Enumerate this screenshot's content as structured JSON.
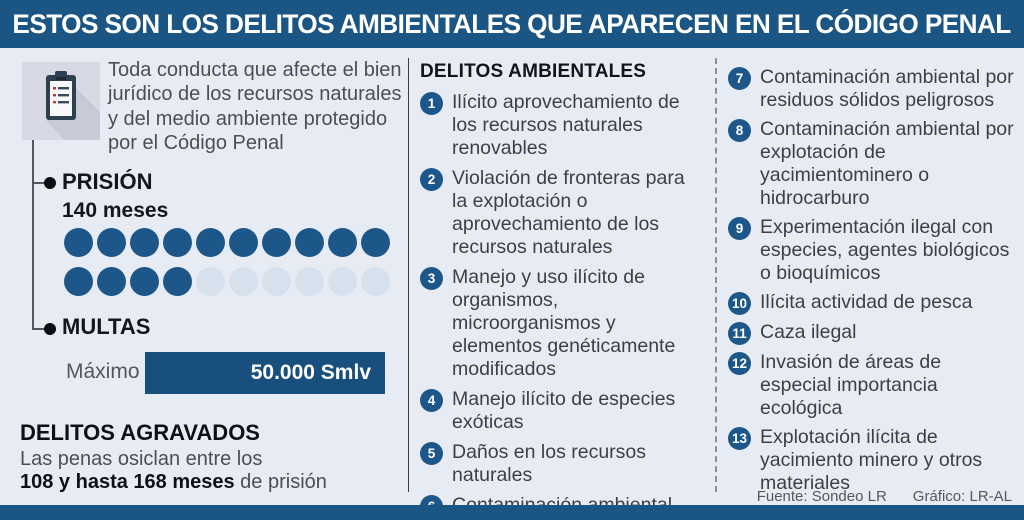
{
  "title": "ESTOS SON LOS DELITOS AMBIENTALES QUE APARECEN EN EL CÓDIGO PENAL",
  "palette": {
    "header_bg": "#1B5583",
    "canvas_bg": "#E7ECF4",
    "accent_dark_blue": "#1D578A",
    "dot_empty": "#D7E1EE",
    "bar_blue": "#194F7C"
  },
  "left": {
    "intro": "Toda conducta que afecte el bien jurídico de los recursos naturales y del medio ambiente protegido por el Código Penal",
    "prision": {
      "label": "PRISIÓN",
      "months_label": "140 meses",
      "dots_total": 20,
      "dots_filled": 14
    },
    "multas": {
      "label": "MULTAS",
      "max_label": "Máximo",
      "value": "50.000 Smlv"
    },
    "agravados": {
      "title": "DELITOS AGRAVADOS",
      "line1": "Las penas osiclan entre los",
      "bold_part": "108 y hasta 168 meses",
      "regular_part": " de prisión"
    }
  },
  "list": {
    "header": "DELITOS AMBIENTALES",
    "split_index": 6,
    "items": [
      {
        "num": "1",
        "text": "Ilícito aprovechamiento de los recursos naturales renovables"
      },
      {
        "num": "2",
        "text": "Violación de fronteras para la explotación o aprovechamiento de los recursos naturales"
      },
      {
        "num": "3",
        "text": "Manejo y uso ilícito de organismos, microorganismos y elementos genéticamente modificados"
      },
      {
        "num": "4",
        "text": "Manejo ilícito de especies exóticas"
      },
      {
        "num": "5",
        "text": "Daños en los recursos naturales"
      },
      {
        "num": "6",
        "text": "Contaminación ambiental"
      },
      {
        "num": "7",
        "text": "Contaminación ambiental por residuos sólidos peligrosos"
      },
      {
        "num": "8",
        "text": "Contaminación ambiental por explotación de yacimientominero o hidrocarburo"
      },
      {
        "num": "9",
        "text": "Experimentación ilegal con especies, agentes biológicos o bioquímicos"
      },
      {
        "num": "10",
        "text": "Ilícita actividad de pesca"
      },
      {
        "num": "11",
        "text": "Caza ilegal"
      },
      {
        "num": "12",
        "text": "Invasión de áreas de especial importancia ecológica"
      },
      {
        "num": "13",
        "text": "Explotación ilícita de yacimiento minero y otros materiales"
      }
    ]
  },
  "footer": {
    "source": "Fuente: Sondeo LR",
    "credit": "Gráfico: LR-AL"
  }
}
